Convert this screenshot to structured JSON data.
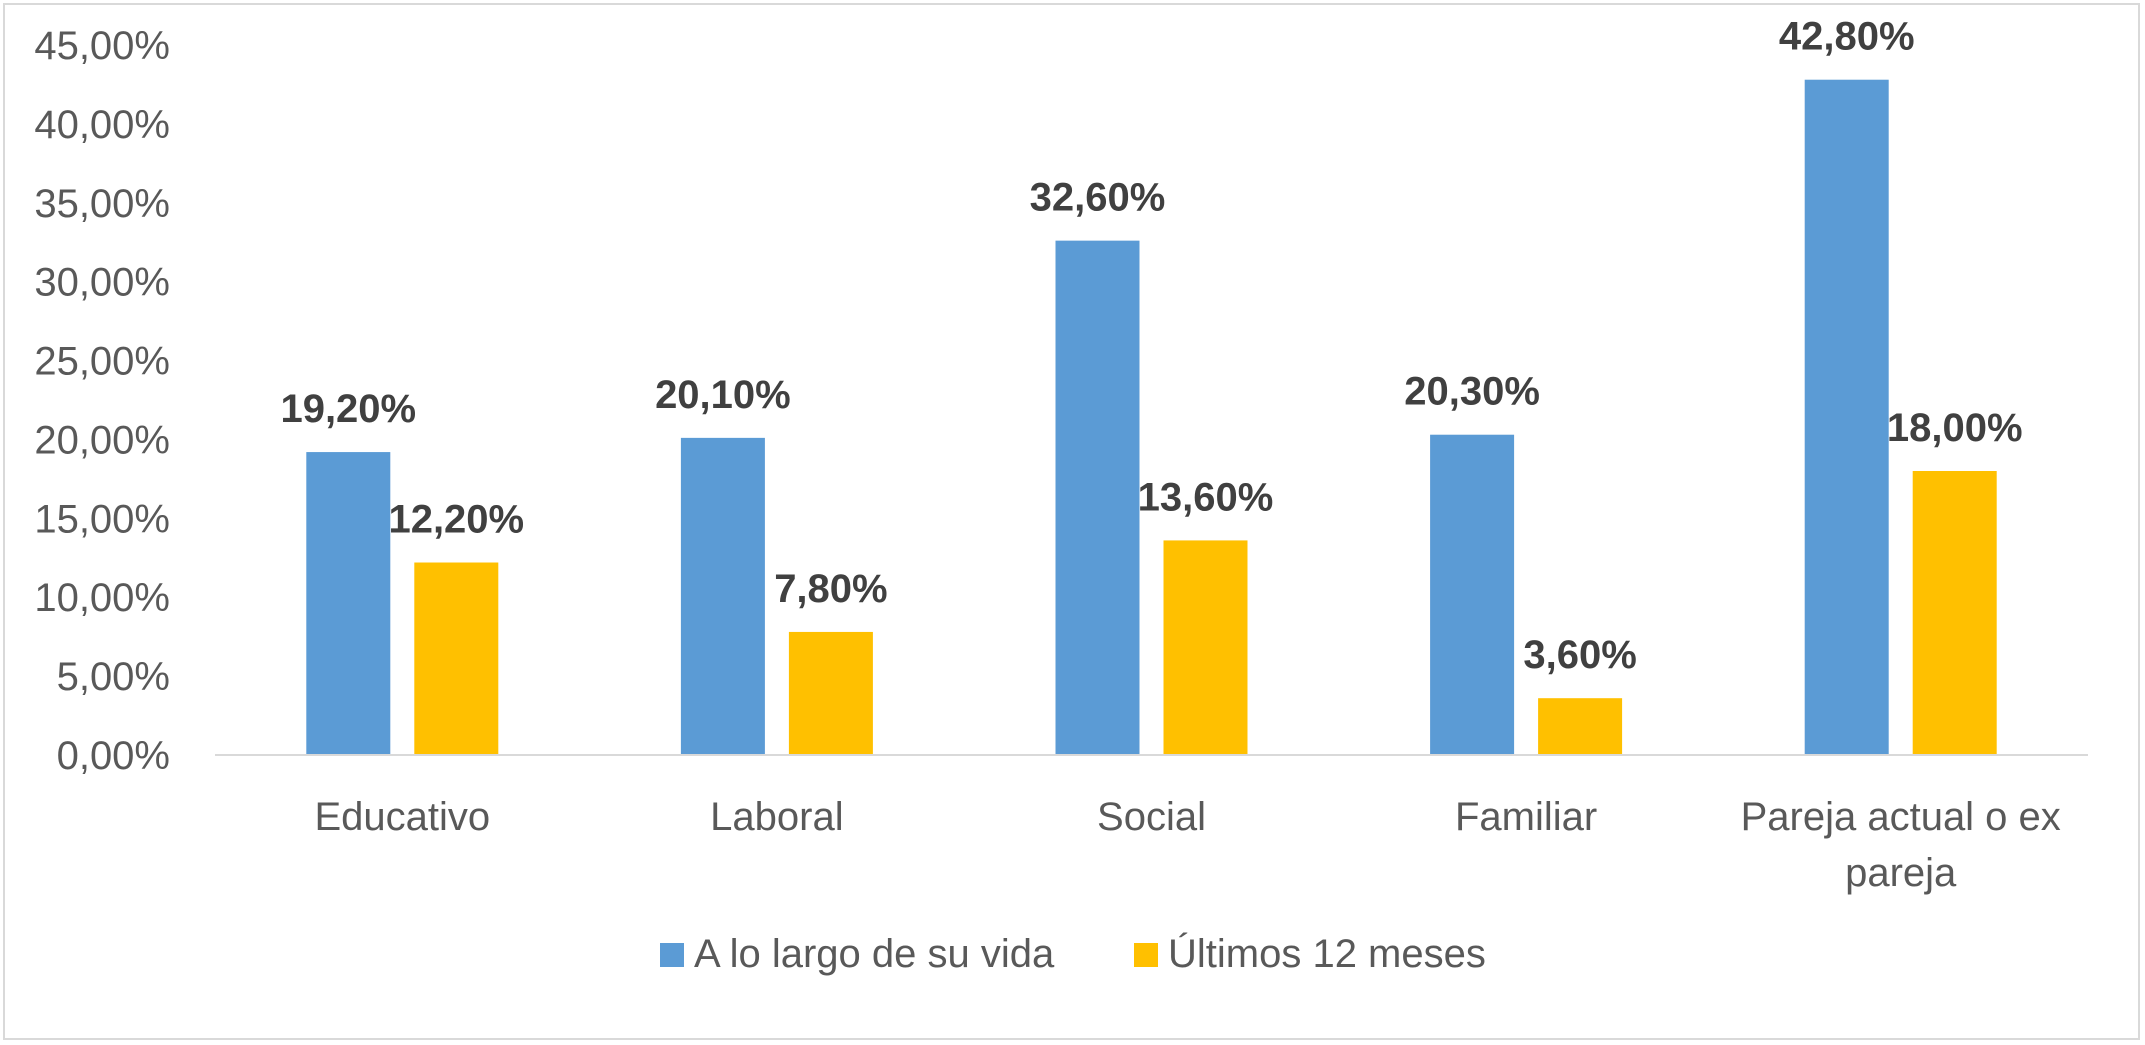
{
  "chart_data": {
    "type": "bar",
    "categories": [
      [
        "Educativo"
      ],
      [
        "Laboral"
      ],
      [
        "Social"
      ],
      [
        "Familiar"
      ],
      [
        "Pareja actual o ex",
        "pareja"
      ]
    ],
    "series": [
      {
        "name": "A lo largo de su vida",
        "color": "#5b9bd5",
        "values": [
          19.2,
          20.1,
          32.6,
          20.3,
          42.8
        ],
        "labels": [
          "19,20%",
          "20,10%",
          "32,60%",
          "20,30%",
          "42,80%"
        ]
      },
      {
        "name": "Últimos 12 meses",
        "color": "#ffc000",
        "values": [
          12.2,
          7.8,
          13.6,
          3.6,
          18.0
        ],
        "labels": [
          "12,20%",
          "7,80%",
          "13,60%",
          "3,60%",
          "18,00%"
        ]
      }
    ],
    "y_ticks": [
      {
        "value": 0,
        "label": "0,00%"
      },
      {
        "value": 5,
        "label": "5,00%"
      },
      {
        "value": 10,
        "label": "10,00%"
      },
      {
        "value": 15,
        "label": "15,00%"
      },
      {
        "value": 20,
        "label": "20,00%"
      },
      {
        "value": 25,
        "label": "25,00%"
      },
      {
        "value": 30,
        "label": "30,00%"
      },
      {
        "value": 35,
        "label": "35,00%"
      },
      {
        "value": 40,
        "label": "40,00%"
      },
      {
        "value": 45,
        "label": "45,00%"
      }
    ],
    "ylim": [
      0,
      45
    ],
    "grid": false,
    "legend_position": "bottom",
    "title": "",
    "xlabel": "",
    "ylabel": ""
  }
}
